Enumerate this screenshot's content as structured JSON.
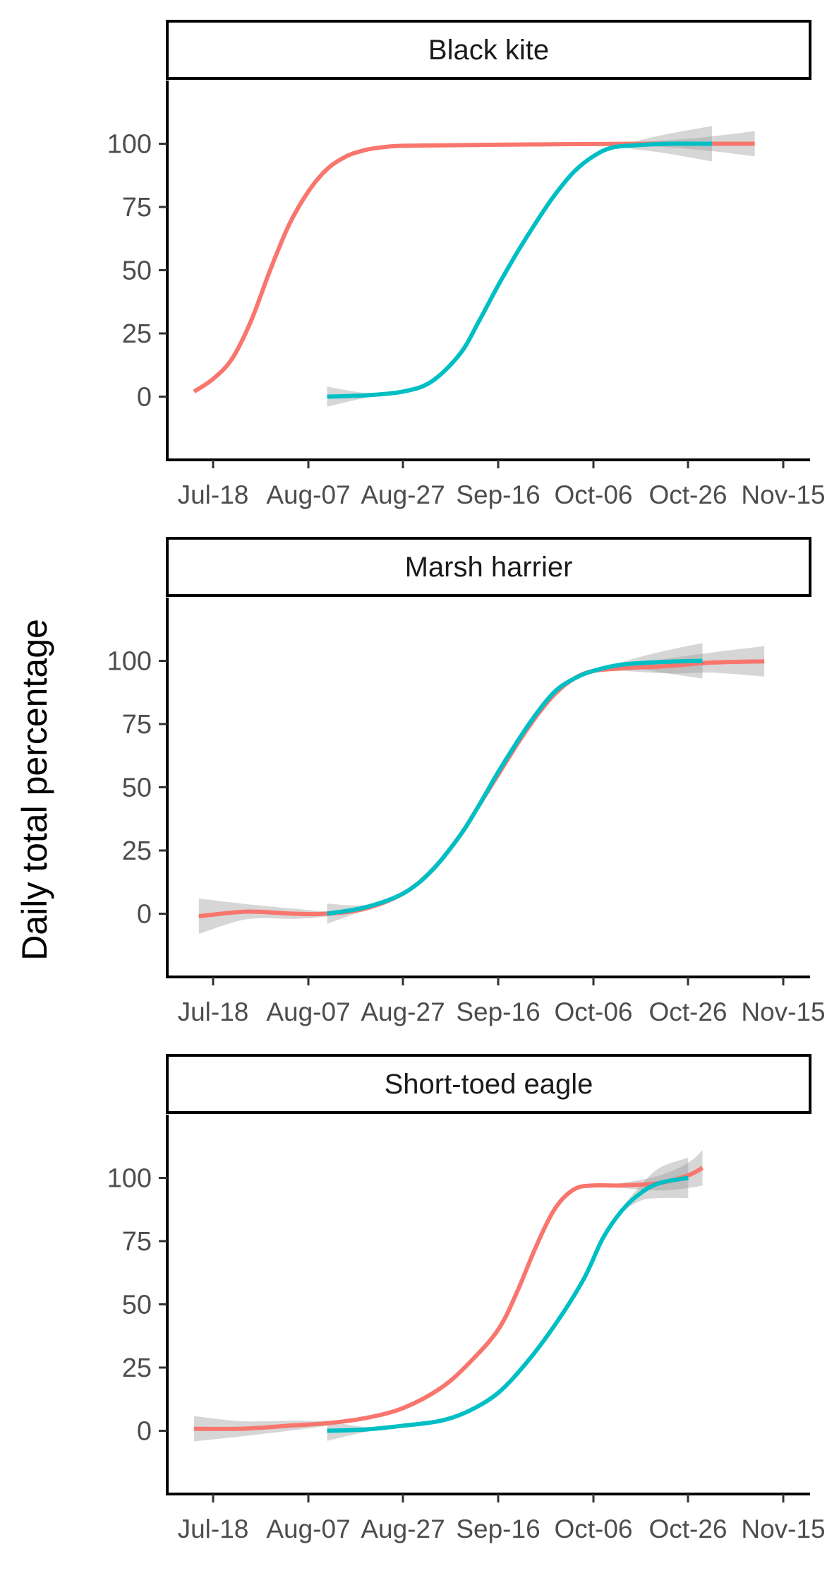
{
  "figure": {
    "ylabel": "Daily total percentage"
  },
  "chart_data": [
    {
      "type": "line",
      "title": "Black kite",
      "xlabel": "",
      "ylabel": "Daily total percentage",
      "x_ticks": [
        "Jul-18",
        "Aug-07",
        "Aug-27",
        "Sep-16",
        "Oct-06",
        "Oct-26",
        "Nov-15"
      ],
      "y_ticks": [
        "0",
        "25",
        "50",
        "75",
        "100"
      ],
      "xlim": [
        "2019-07-11",
        "2019-11-21"
      ],
      "ylim": [
        -25,
        125
      ],
      "legend": "none",
      "grid": false,
      "series": [
        {
          "color": "#F8766D",
          "x": [
            "2019-07-14",
            "2019-07-18",
            "2019-07-22",
            "2019-07-26",
            "2019-07-30",
            "2019-08-03",
            "2019-08-07",
            "2019-08-11",
            "2019-08-15",
            "2019-08-19",
            "2019-08-23",
            "2019-08-27",
            "2019-09-06",
            "2019-09-16",
            "2019-10-06",
            "2019-10-26",
            "2019-11-09"
          ],
          "y": [
            2,
            7,
            15,
            30,
            50,
            68,
            81,
            90,
            95,
            97.5,
            98.7,
            99.2,
            99.4,
            99.6,
            99.9,
            100,
            100
          ],
          "ci_band": [
            [
              0,
              0
            ],
            [
              0,
              0
            ],
            [
              0,
              0
            ],
            [
              0,
              0
            ],
            [
              0,
              0
            ],
            [
              0,
              0
            ],
            [
              0,
              0
            ],
            [
              0,
              0
            ],
            [
              0,
              0
            ],
            [
              0,
              0
            ],
            [
              0,
              0
            ],
            [
              0,
              0
            ],
            [
              0,
              0
            ],
            [
              0,
              0
            ],
            [
              0,
              0
            ],
            [
              -2,
              2
            ],
            [
              -5,
              5
            ]
          ]
        },
        {
          "color": "#00BFC4",
          "x": [
            "2019-08-11",
            "2019-08-19",
            "2019-08-27",
            "2019-09-02",
            "2019-09-08",
            "2019-09-12",
            "2019-09-16",
            "2019-09-20",
            "2019-09-24",
            "2019-09-28",
            "2019-10-02",
            "2019-10-06",
            "2019-10-10",
            "2019-10-16",
            "2019-10-22",
            "2019-10-31"
          ],
          "y": [
            0,
            0.5,
            2,
            6,
            17,
            30,
            44,
            57,
            69,
            80,
            89,
            95,
            98.5,
            99.5,
            100,
            100
          ],
          "ci_band": [
            [
              -4,
              4
            ],
            [
              -1,
              1
            ],
            [
              0,
              0
            ],
            [
              0,
              0
            ],
            [
              0,
              0
            ],
            [
              0,
              0
            ],
            [
              0,
              0
            ],
            [
              0,
              0
            ],
            [
              0,
              0
            ],
            [
              0,
              0
            ],
            [
              0,
              0
            ],
            [
              0,
              0
            ],
            [
              0,
              0
            ],
            [
              -2,
              2
            ],
            [
              -4,
              4
            ],
            [
              -7,
              7
            ]
          ]
        }
      ]
    },
    {
      "type": "line",
      "title": "Marsh harrier",
      "xlabel": "",
      "ylabel": "Daily total percentage",
      "x_ticks": [
        "Jul-18",
        "Aug-07",
        "Aug-27",
        "Sep-16",
        "Oct-06",
        "Oct-26",
        "Nov-15"
      ],
      "y_ticks": [
        "0",
        "25",
        "50",
        "75",
        "100"
      ],
      "xlim": [
        "2019-07-11",
        "2019-11-21"
      ],
      "ylim": [
        -25,
        125
      ],
      "legend": "none",
      "grid": false,
      "series": [
        {
          "color": "#F8766D",
          "x": [
            "2019-07-15",
            "2019-07-25",
            "2019-08-04",
            "2019-08-11",
            "2019-08-19",
            "2019-08-27",
            "2019-09-02",
            "2019-09-08",
            "2019-09-12",
            "2019-09-16",
            "2019-09-20",
            "2019-09-24",
            "2019-09-28",
            "2019-10-02",
            "2019-10-06",
            "2019-10-12",
            "2019-10-22",
            "2019-10-31",
            "2019-11-11"
          ],
          "y": [
            -1,
            0.8,
            0,
            0,
            2,
            8,
            17,
            31,
            43,
            55,
            67,
            78,
            87,
            93,
            96,
            97,
            98,
            99.3,
            99.8
          ],
          "ci_band": [
            [
              -7,
              7
            ],
            [
              -3,
              3
            ],
            [
              -2,
              2
            ],
            [
              -1,
              1
            ],
            [
              0,
              0
            ],
            [
              0,
              0
            ],
            [
              0,
              0
            ],
            [
              0,
              0
            ],
            [
              0,
              0
            ],
            [
              0,
              0
            ],
            [
              0,
              0
            ],
            [
              0,
              0
            ],
            [
              0,
              0
            ],
            [
              0,
              0
            ],
            [
              0,
              0
            ],
            [
              -1,
              1
            ],
            [
              -3,
              3
            ],
            [
              -4,
              4
            ],
            [
              -6,
              6
            ]
          ]
        },
        {
          "color": "#00BFC4",
          "x": [
            "2019-08-11",
            "2019-08-19",
            "2019-08-27",
            "2019-09-02",
            "2019-09-08",
            "2019-09-12",
            "2019-09-16",
            "2019-09-20",
            "2019-09-24",
            "2019-09-28",
            "2019-10-02",
            "2019-10-06",
            "2019-10-12",
            "2019-10-20",
            "2019-10-29"
          ],
          "y": [
            0,
            2.5,
            8,
            17,
            31,
            43,
            56,
            68,
            79,
            88,
            93,
            96,
            98.5,
            99.5,
            100
          ],
          "ci_band": [
            [
              -4,
              4
            ],
            [
              -1,
              1
            ],
            [
              0,
              0
            ],
            [
              0,
              0
            ],
            [
              0,
              0
            ],
            [
              0,
              0
            ],
            [
              0,
              0
            ],
            [
              0,
              0
            ],
            [
              0,
              0
            ],
            [
              0,
              0
            ],
            [
              0,
              0
            ],
            [
              0,
              0
            ],
            [
              -1,
              1
            ],
            [
              -4,
              4
            ],
            [
              -7,
              7
            ]
          ]
        }
      ]
    },
    {
      "type": "line",
      "title": "Short-toed eagle",
      "xlabel": "",
      "ylabel": "Daily total percentage",
      "x_ticks": [
        "Jul-18",
        "Aug-07",
        "Aug-27",
        "Sep-16",
        "Oct-06",
        "Oct-26",
        "Nov-15"
      ],
      "y_ticks": [
        "0",
        "25",
        "50",
        "75",
        "100"
      ],
      "xlim": [
        "2019-07-11",
        "2019-11-21"
      ],
      "ylim": [
        -25,
        125
      ],
      "legend": "none",
      "grid": false,
      "series": [
        {
          "color": "#F8766D",
          "x": [
            "2019-07-14",
            "2019-07-24",
            "2019-08-03",
            "2019-08-11",
            "2019-08-19",
            "2019-08-27",
            "2019-09-04",
            "2019-09-10",
            "2019-09-16",
            "2019-09-20",
            "2019-09-24",
            "2019-09-28",
            "2019-10-02",
            "2019-10-06",
            "2019-10-12",
            "2019-10-20",
            "2019-10-26",
            "2019-10-29"
          ],
          "y": [
            0.8,
            0.8,
            2,
            3,
            5,
            9,
            17,
            27,
            40,
            55,
            73,
            88,
            95.5,
            97,
            97,
            98,
            101,
            104
          ],
          "ci_band": [
            [
              -5,
              5
            ],
            [
              -3,
              3
            ],
            [
              -2,
              2
            ],
            [
              -1,
              1
            ],
            [
              0,
              0
            ],
            [
              0,
              0
            ],
            [
              0,
              0
            ],
            [
              0,
              0
            ],
            [
              0,
              0
            ],
            [
              0,
              0
            ],
            [
              0,
              0
            ],
            [
              0,
              0
            ],
            [
              0,
              0
            ],
            [
              0,
              0
            ],
            [
              -1,
              1
            ],
            [
              -3,
              3
            ],
            [
              -5,
              5
            ],
            [
              -7,
              7
            ]
          ]
        },
        {
          "color": "#00BFC4",
          "x": [
            "2019-08-11",
            "2019-08-19",
            "2019-08-27",
            "2019-09-04",
            "2019-09-10",
            "2019-09-16",
            "2019-09-22",
            "2019-09-28",
            "2019-10-04",
            "2019-10-08",
            "2019-10-12",
            "2019-10-16",
            "2019-10-20",
            "2019-10-26"
          ],
          "y": [
            0,
            0.5,
            2,
            4,
            8,
            15,
            27,
            42,
            60,
            76,
            87,
            94,
            98,
            100
          ],
          "ci_band": [
            [
              -4,
              4
            ],
            [
              -1,
              1
            ],
            [
              0,
              0
            ],
            [
              0,
              0
            ],
            [
              0,
              0
            ],
            [
              0,
              0
            ],
            [
              0,
              0
            ],
            [
              0,
              0
            ],
            [
              0,
              0
            ],
            [
              0,
              0
            ],
            [
              -1,
              1
            ],
            [
              -3,
              3
            ],
            [
              -6,
              6
            ],
            [
              -8,
              8
            ]
          ]
        }
      ]
    }
  ]
}
